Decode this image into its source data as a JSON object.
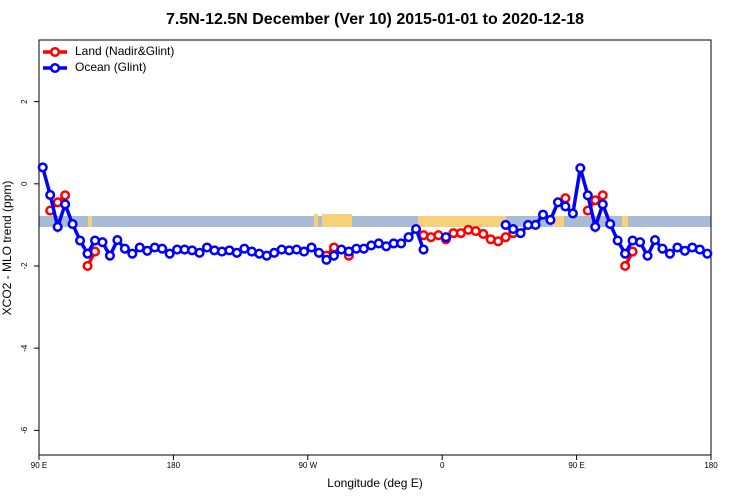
{
  "chart_data": {
    "type": "line",
    "title": "7.5N-12.5N December (Ver 10)   2015-01-01 to 2020-12-18",
    "xlabel": "Longitude (deg E)",
    "ylabel": "XCO2 - MLO trend (ppm)",
    "xlim": [
      90,
      540
    ],
    "ylim": [
      -6.6,
      3.5
    ],
    "xticks": [
      {
        "value": 90,
        "label": "90 E"
      },
      180,
      {
        "value": 270,
        "label": "90 W"
      },
      {
        "value": 360,
        "label": "0"
      },
      {
        "value": 450,
        "label": "90 E"
      },
      {
        "value": 540,
        "label": "180"
      }
    ],
    "yticks": [
      2,
      0,
      -2,
      -4,
      -6
    ],
    "legend": "top-left",
    "x": [
      92.5,
      97.5,
      102.5,
      107.5,
      112.5,
      117.5,
      122.5,
      127.5,
      132.5,
      137.5,
      142.5,
      147.5,
      152.5,
      157.5,
      162.5,
      167.5,
      172.5,
      177.5,
      182.5,
      187.5,
      192.5,
      197.5,
      202.5,
      207.5,
      212.5,
      217.5,
      222.5,
      227.5,
      232.5,
      237.5,
      242.5,
      247.5,
      252.5,
      257.5,
      262.5,
      267.5,
      272.5,
      277.5,
      282.5,
      287.5,
      292.5,
      297.5,
      302.5,
      307.5,
      312.5,
      317.5,
      322.5,
      327.5,
      332.5,
      337.5,
      342.5,
      347.5,
      352.5,
      357.5,
      362.5,
      367.5,
      372.5,
      377.5,
      382.5,
      387.5,
      392.5,
      397.5,
      402.5,
      407.5,
      412.5,
      417.5,
      422.5,
      427.5,
      432.5,
      437.5,
      442.5,
      447.5,
      452.5,
      457.5,
      462.5,
      467.5,
      472.5,
      477.5,
      482.5,
      487.5,
      492.5,
      497.5,
      502.5,
      507.5,
      512.5,
      517.5,
      522.5,
      527.5,
      532.5,
      537.5
    ],
    "series": [
      {
        "name": "Land (Nadir&Glint)",
        "color": "#ff0000",
        "values": [
          null,
          -0.65,
          -0.45,
          -0.28,
          null,
          null,
          -2.0,
          -1.65,
          null,
          null,
          null,
          null,
          null,
          null,
          null,
          null,
          null,
          null,
          null,
          null,
          null,
          null,
          null,
          null,
          null,
          null,
          null,
          null,
          null,
          null,
          null,
          null,
          null,
          null,
          null,
          null,
          null,
          null,
          -1.75,
          -1.55,
          null,
          -1.75,
          null,
          null,
          null,
          null,
          null,
          null,
          null,
          null,
          null,
          -1.25,
          -1.3,
          -1.25,
          -1.35,
          -1.2,
          -1.2,
          -1.12,
          -1.15,
          -1.22,
          -1.35,
          -1.4,
          -1.3,
          -1.2,
          null,
          null,
          null,
          null,
          null,
          null,
          -0.35,
          null,
          null,
          -0.65,
          -0.4,
          -0.28,
          null,
          null,
          -2.0,
          -1.65,
          null,
          null,
          null,
          null,
          null,
          null,
          null,
          null,
          null,
          null
        ]
      },
      {
        "name": "Ocean (Glint)",
        "color": "#0000ff",
        "values": [
          0.4,
          -0.27,
          -1.05,
          -0.5,
          -0.98,
          -1.38,
          -1.7,
          -1.38,
          -1.42,
          -1.75,
          -1.37,
          -1.58,
          -1.7,
          -1.55,
          -1.63,
          -1.55,
          -1.58,
          -1.7,
          -1.6,
          -1.6,
          -1.62,
          -1.68,
          -1.55,
          -1.62,
          -1.65,
          -1.62,
          -1.68,
          -1.58,
          -1.65,
          -1.7,
          -1.75,
          -1.68,
          -1.6,
          -1.62,
          -1.6,
          -1.65,
          -1.55,
          -1.68,
          -1.85,
          -1.75,
          -1.6,
          -1.65,
          -1.58,
          -1.58,
          -1.5,
          -1.45,
          -1.52,
          -1.45,
          -1.45,
          -1.3,
          -1.1,
          -1.6,
          null,
          null,
          -1.3,
          null,
          null,
          null,
          null,
          null,
          null,
          null,
          -1.0,
          -1.1,
          -1.2,
          -1.0,
          -1.0,
          -0.75,
          -0.88,
          -0.45,
          -0.55,
          -0.72,
          0.38,
          -0.28,
          -1.05,
          -0.5,
          -0.98,
          -1.38,
          -1.7,
          -1.38,
          -1.42,
          -1.75,
          -1.37,
          -1.58,
          -1.7,
          -1.55,
          -1.63,
          -1.55,
          -1.6,
          -1.7
        ]
      }
    ]
  }
}
